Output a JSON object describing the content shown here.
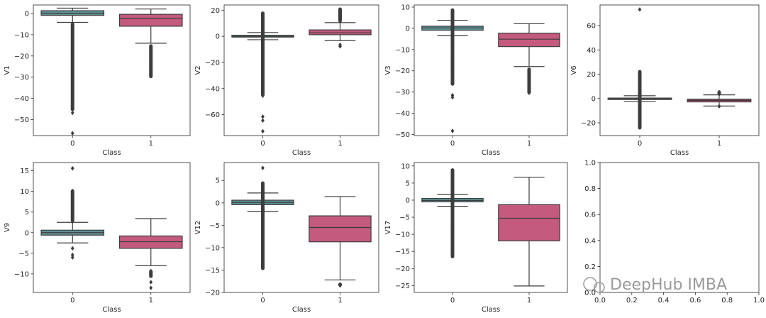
{
  "figure": {
    "watermark": "DeepHub IMBA"
  },
  "colors": {
    "class0": "#5f9196",
    "class1": "#c45a7e",
    "line": "#3d3d3d",
    "axes": "#262626",
    "background": "#ffffff"
  },
  "chart_data": [
    {
      "type": "box",
      "title": "",
      "xlabel": "Class",
      "ylabel": "V1",
      "categories": [
        "0",
        "1"
      ],
      "ylim": [
        -57.5,
        4
      ],
      "yticks": [
        0,
        -10,
        -20,
        -30,
        -40,
        -50
      ],
      "boxes": [
        {
          "category": "0",
          "q1": -0.9,
          "median": 0.0,
          "q3": 1.3,
          "whisker_low": -4.2,
          "whisker_high": 2.5,
          "outlier_range": [
            -46,
            -4.2
          ],
          "outliers": [
            -56.4,
            -46.8
          ]
        },
        {
          "category": "1",
          "q1": -6.0,
          "median": -2.3,
          "q3": -0.4,
          "whisker_low": -14.0,
          "whisker_high": 2.1,
          "outlier_range": [
            -30.5,
            -14.5
          ],
          "outliers": []
        }
      ]
    },
    {
      "type": "box",
      "title": "",
      "xlabel": "Class",
      "ylabel": "V2",
      "categories": [
        "0",
        "1"
      ],
      "ylim": [
        -76,
        24
      ],
      "yticks": [
        20,
        0,
        -20,
        -40,
        -60
      ],
      "boxes": [
        {
          "category": "0",
          "q1": -0.6,
          "median": 0.1,
          "q3": 0.8,
          "whisker_low": -2.6,
          "whisker_high": 2.9,
          "outlier_range": [
            -46,
            19
          ],
          "outliers": [
            -61.5,
            -64.5,
            -72.7
          ]
        },
        {
          "category": "1",
          "q1": 1.2,
          "median": 2.7,
          "q3": 4.9,
          "whisker_low": -3.3,
          "whisker_high": 10.5,
          "outlier_range": [
            11,
            22.1
          ],
          "outliers": [
            -6.5,
            -7.7
          ]
        }
      ]
    },
    {
      "type": "box",
      "title": "",
      "xlabel": "Class",
      "ylabel": "V3",
      "categories": [
        "0",
        "1"
      ],
      "ylim": [
        -50.5,
        11
      ],
      "yticks": [
        10,
        0,
        -10,
        -20,
        -30,
        -40,
        -50
      ],
      "boxes": [
        {
          "category": "0",
          "q1": -0.9,
          "median": 0.2,
          "q3": 1.0,
          "whisker_low": -3.5,
          "whisker_high": 3.8,
          "outlier_range": [
            -27,
            9.4
          ],
          "outliers": [
            -31.5,
            -32.5,
            -48.3
          ]
        },
        {
          "category": "1",
          "q1": -8.6,
          "median": -5.1,
          "q3": -2.3,
          "whisker_low": -18.0,
          "whisker_high": 2.2,
          "outlier_range": [
            -31,
            -18.5
          ],
          "outliers": []
        }
      ]
    },
    {
      "type": "box",
      "title": "",
      "xlabel": "Class",
      "ylabel": "V6",
      "categories": [
        "0",
        "1"
      ],
      "ylim": [
        -30.5,
        77
      ],
      "yticks": [
        60,
        40,
        20,
        0,
        -20
      ],
      "boxes": [
        {
          "category": "0",
          "q1": -0.8,
          "median": -0.3,
          "q3": 0.4,
          "whisker_low": -2.5,
          "whisker_high": 2.3,
          "outlier_range": [
            -25.5,
            23.5
          ],
          "outliers": [
            73.3
          ]
        },
        {
          "category": "1",
          "q1": -2.8,
          "median": -1.5,
          "q3": -0.5,
          "whisker_low": -6.2,
          "whisker_high": 3.0,
          "outlier_range": [
            3,
            6.5
          ],
          "outliers": [
            -6.4
          ]
        }
      ]
    },
    {
      "type": "box",
      "title": "",
      "xlabel": "Class",
      "ylabel": "V9",
      "categories": [
        "0",
        "1"
      ],
      "ylim": [
        -14.5,
        17
      ],
      "yticks": [
        15,
        10,
        5,
        0,
        -5,
        -10
      ],
      "boxes": [
        {
          "category": "0",
          "q1": -0.6,
          "median": 0.0,
          "q3": 0.6,
          "whisker_low": -2.5,
          "whisker_high": 2.5,
          "outlier_range": [
            2.6,
            10.5
          ],
          "outliers": [
            15.6,
            -6.0,
            -5.4,
            -3.8
          ]
        },
        {
          "category": "1",
          "q1": -3.8,
          "median": -2.2,
          "q3": -0.8,
          "whisker_low": -8.0,
          "whisker_high": 3.4,
          "outlier_range": [
            -9.0,
            -11.0
          ],
          "outliers": [
            -12.0,
            -13.4
          ]
        }
      ]
    },
    {
      "type": "box",
      "title": "",
      "xlabel": "Class",
      "ylabel": "V12",
      "categories": [
        "0",
        "1"
      ],
      "ylim": [
        -20,
        9
      ],
      "yticks": [
        5,
        0,
        -5,
        -10,
        -15,
        -20
      ],
      "boxes": [
        {
          "category": "0",
          "q1": -0.4,
          "median": 0.1,
          "q3": 0.6,
          "whisker_low": -1.9,
          "whisker_high": 2.2,
          "outlier_range": [
            -15,
            4.8
          ],
          "outliers": [
            7.8
          ]
        },
        {
          "category": "1",
          "q1": -8.7,
          "median": -5.5,
          "q3": -2.9,
          "whisker_low": -17.2,
          "whisker_high": 1.4,
          "outlier_range": [
            -17.8,
            -18.6
          ],
          "outliers": []
        }
      ]
    },
    {
      "type": "box",
      "title": "",
      "xlabel": "Class",
      "ylabel": "V17",
      "categories": [
        "0",
        "1"
      ],
      "ylim": [
        -27,
        11
      ],
      "yticks": [
        10,
        5,
        0,
        -5,
        -10,
        -15,
        -20,
        -25
      ],
      "boxes": [
        {
          "category": "0",
          "q1": -0.5,
          "median": -0.1,
          "q3": 0.5,
          "whisker_low": -1.8,
          "whisker_high": 1.7,
          "outlier_range": [
            -17,
            9.3
          ],
          "outliers": []
        },
        {
          "category": "1",
          "q1": -11.9,
          "median": -5.3,
          "q3": -1.3,
          "whisker_low": -25.1,
          "whisker_high": 6.7,
          "outlier_range": [
            6.7,
            6.7
          ],
          "outliers": []
        }
      ]
    },
    {
      "type": "empty",
      "title": "",
      "xlabel": "",
      "ylabel": "",
      "xlim": [
        0.0,
        1.0
      ],
      "ylim": [
        0.0,
        1.0
      ],
      "xticks": [
        "0.0",
        "0.2",
        "0.4",
        "0.6",
        "0.8",
        "1.0"
      ],
      "yticks": [
        "0.0",
        "0.2",
        "0.4",
        "0.6",
        "0.8",
        "1.0"
      ]
    }
  ]
}
